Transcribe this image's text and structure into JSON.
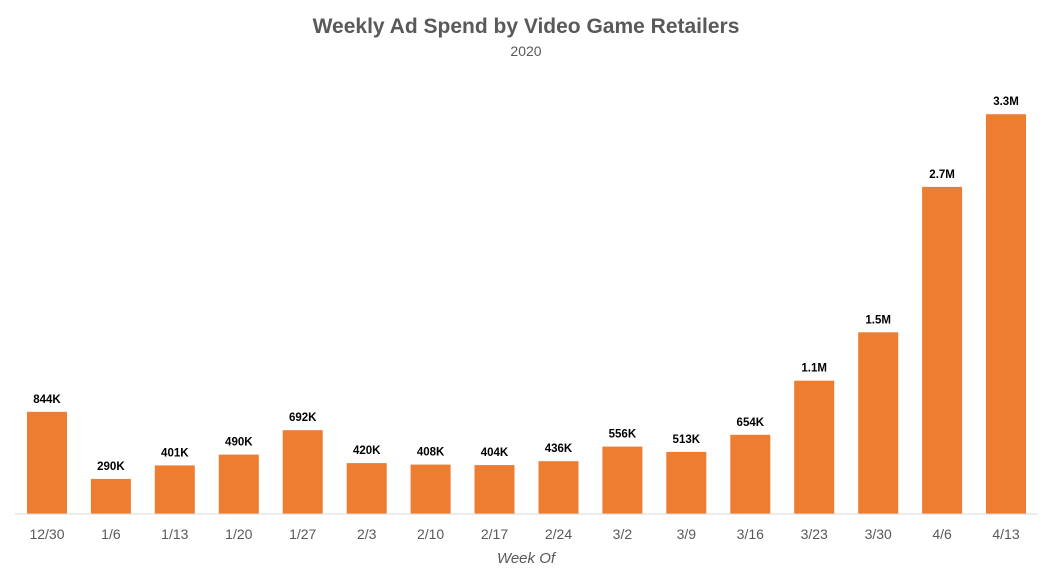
{
  "chart_data": {
    "type": "bar",
    "title": "Weekly Ad Spend by Video Game Retailers",
    "subtitle": "2020",
    "xlabel": "Week Of",
    "ylabel": "",
    "categories": [
      "12/30",
      "1/6",
      "1/13",
      "1/20",
      "1/27",
      "2/3",
      "2/10",
      "2/17",
      "2/24",
      "3/2",
      "3/9",
      "3/16",
      "3/23",
      "3/30",
      "4/6",
      "4/13"
    ],
    "values": [
      844000,
      290000,
      401000,
      490000,
      692000,
      420000,
      408000,
      404000,
      436000,
      556000,
      513000,
      654000,
      1100000,
      1500000,
      2700000,
      3300000
    ],
    "data_labels": [
      "844K",
      "290K",
      "401K",
      "490K",
      "692K",
      "420K",
      "408K",
      "404K",
      "436K",
      "556K",
      "513K",
      "654K",
      "1.1M",
      "1.5M",
      "2.7M",
      "3.3M"
    ],
    "ylim": [
      0,
      3500000
    ],
    "bar_color": "#ED7D31",
    "grid": false,
    "legend": "none"
  }
}
